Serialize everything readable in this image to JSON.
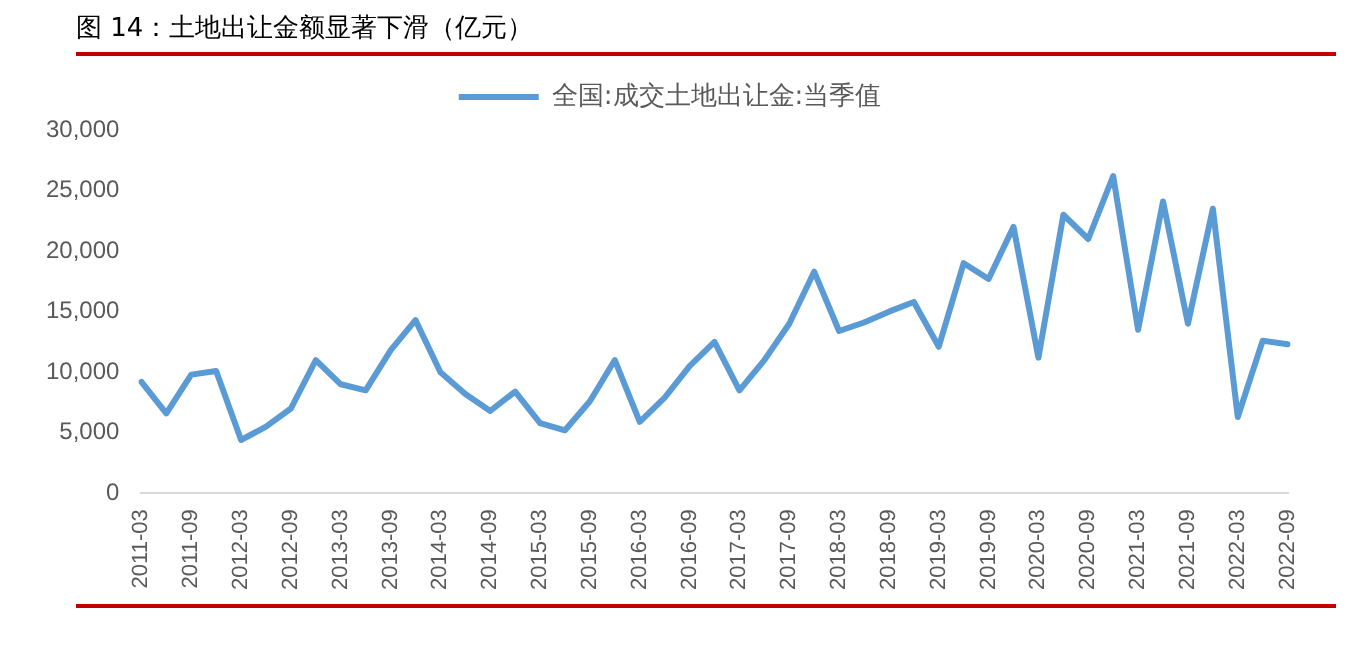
{
  "chart_data": {
    "type": "line",
    "title": "图 14：土地出让金额显著下滑（亿元）",
    "categories": [
      "2011-03",
      null,
      "2011-09",
      null,
      "2012-03",
      null,
      "2012-09",
      null,
      "2013-03",
      null,
      "2013-09",
      null,
      "2014-03",
      null,
      "2014-09",
      null,
      "2015-03",
      null,
      "2015-09",
      null,
      "2016-03",
      null,
      "2016-09",
      null,
      "2017-03",
      null,
      "2017-09",
      null,
      "2018-03",
      null,
      "2018-09",
      null,
      "2019-03",
      null,
      "2019-09",
      null,
      "2020-03",
      null,
      "2020-09",
      null,
      "2021-03",
      null,
      "2021-09",
      null,
      "2022-03",
      null,
      "2022-09"
    ],
    "series": [
      {
        "name": "全国:成交土地出让金:当季值",
        "color": "#5b9bd5",
        "values": [
          9200,
          6600,
          9800,
          10100,
          4400,
          5500,
          7000,
          11000,
          9000,
          8500,
          11800,
          14300,
          10000,
          8200,
          6800,
          8400,
          5800,
          5200,
          7600,
          11000,
          5900,
          7900,
          10500,
          12500,
          8500,
          11000,
          14000,
          18300,
          13400,
          14100,
          15000,
          15800,
          12100,
          19000,
          17700,
          22000,
          11200,
          23000,
          21000,
          26200,
          13500,
          24100,
          14000,
          23500,
          6300,
          12600,
          12300
        ]
      }
    ],
    "ylim": [
      0,
      30000
    ],
    "yticks": [
      0,
      {
        "value": 5000,
        "label": "5,000"
      },
      {
        "value": 10000,
        "label": "10,000"
      },
      {
        "value": 15000,
        "label": "15,000"
      },
      {
        "value": 20000,
        "label": "20,000"
      },
      {
        "value": 25000,
        "label": "25,000"
      },
      {
        "value": 30000,
        "label": "30,000"
      }
    ],
    "grid": false,
    "legend": "top",
    "marker": "none",
    "line_style": "solid"
  }
}
